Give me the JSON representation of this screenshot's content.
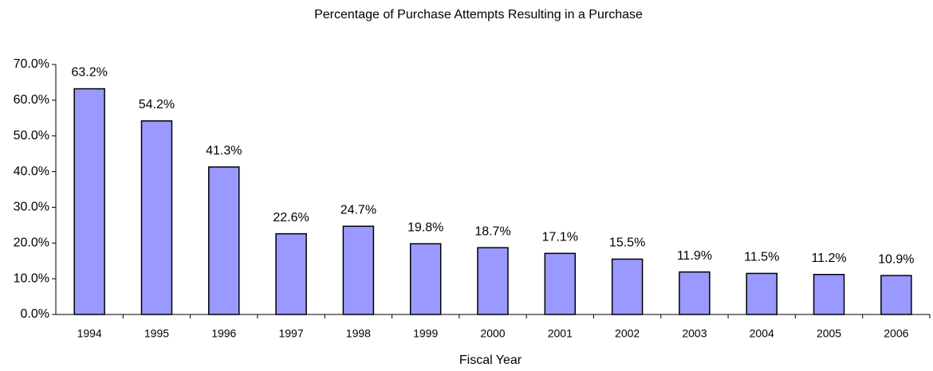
{
  "chart_data": {
    "type": "bar",
    "title": "Percentage of Purchase Attempts Resulting in a Purchase",
    "x_label": "Fiscal Year",
    "categories": [
      "1994",
      "1995",
      "1996",
      "1997",
      "1998",
      "1999",
      "2000",
      "2001",
      "2002",
      "2003",
      "2004",
      "2005",
      "2006"
    ],
    "values": [
      63.2,
      54.2,
      41.3,
      22.6,
      24.7,
      19.8,
      18.7,
      17.1,
      15.5,
      11.9,
      11.5,
      11.2,
      10.9
    ],
    "value_labels": [
      "63.2%",
      "54.2%",
      "41.3%",
      "22.6%",
      "24.7%",
      "19.8%",
      "18.7%",
      "17.1%",
      "15.5%",
      "11.9%",
      "11.5%",
      "11.2%",
      "10.9%"
    ],
    "color": "#9999ff",
    "ylim": [
      0,
      70
    ],
    "yticks": [
      {
        "value": 0,
        "label": "0.0%"
      },
      {
        "value": 10,
        "label": "10.0%"
      },
      {
        "value": 20,
        "label": "20.0%"
      },
      {
        "value": 30,
        "label": "30.0%"
      },
      {
        "value": 40,
        "label": "40.0%"
      },
      {
        "value": 50,
        "label": "50.0%"
      },
      {
        "value": 60,
        "label": "60.0%"
      },
      {
        "value": 70,
        "label": "70.0%"
      }
    ],
    "grid": false
  }
}
